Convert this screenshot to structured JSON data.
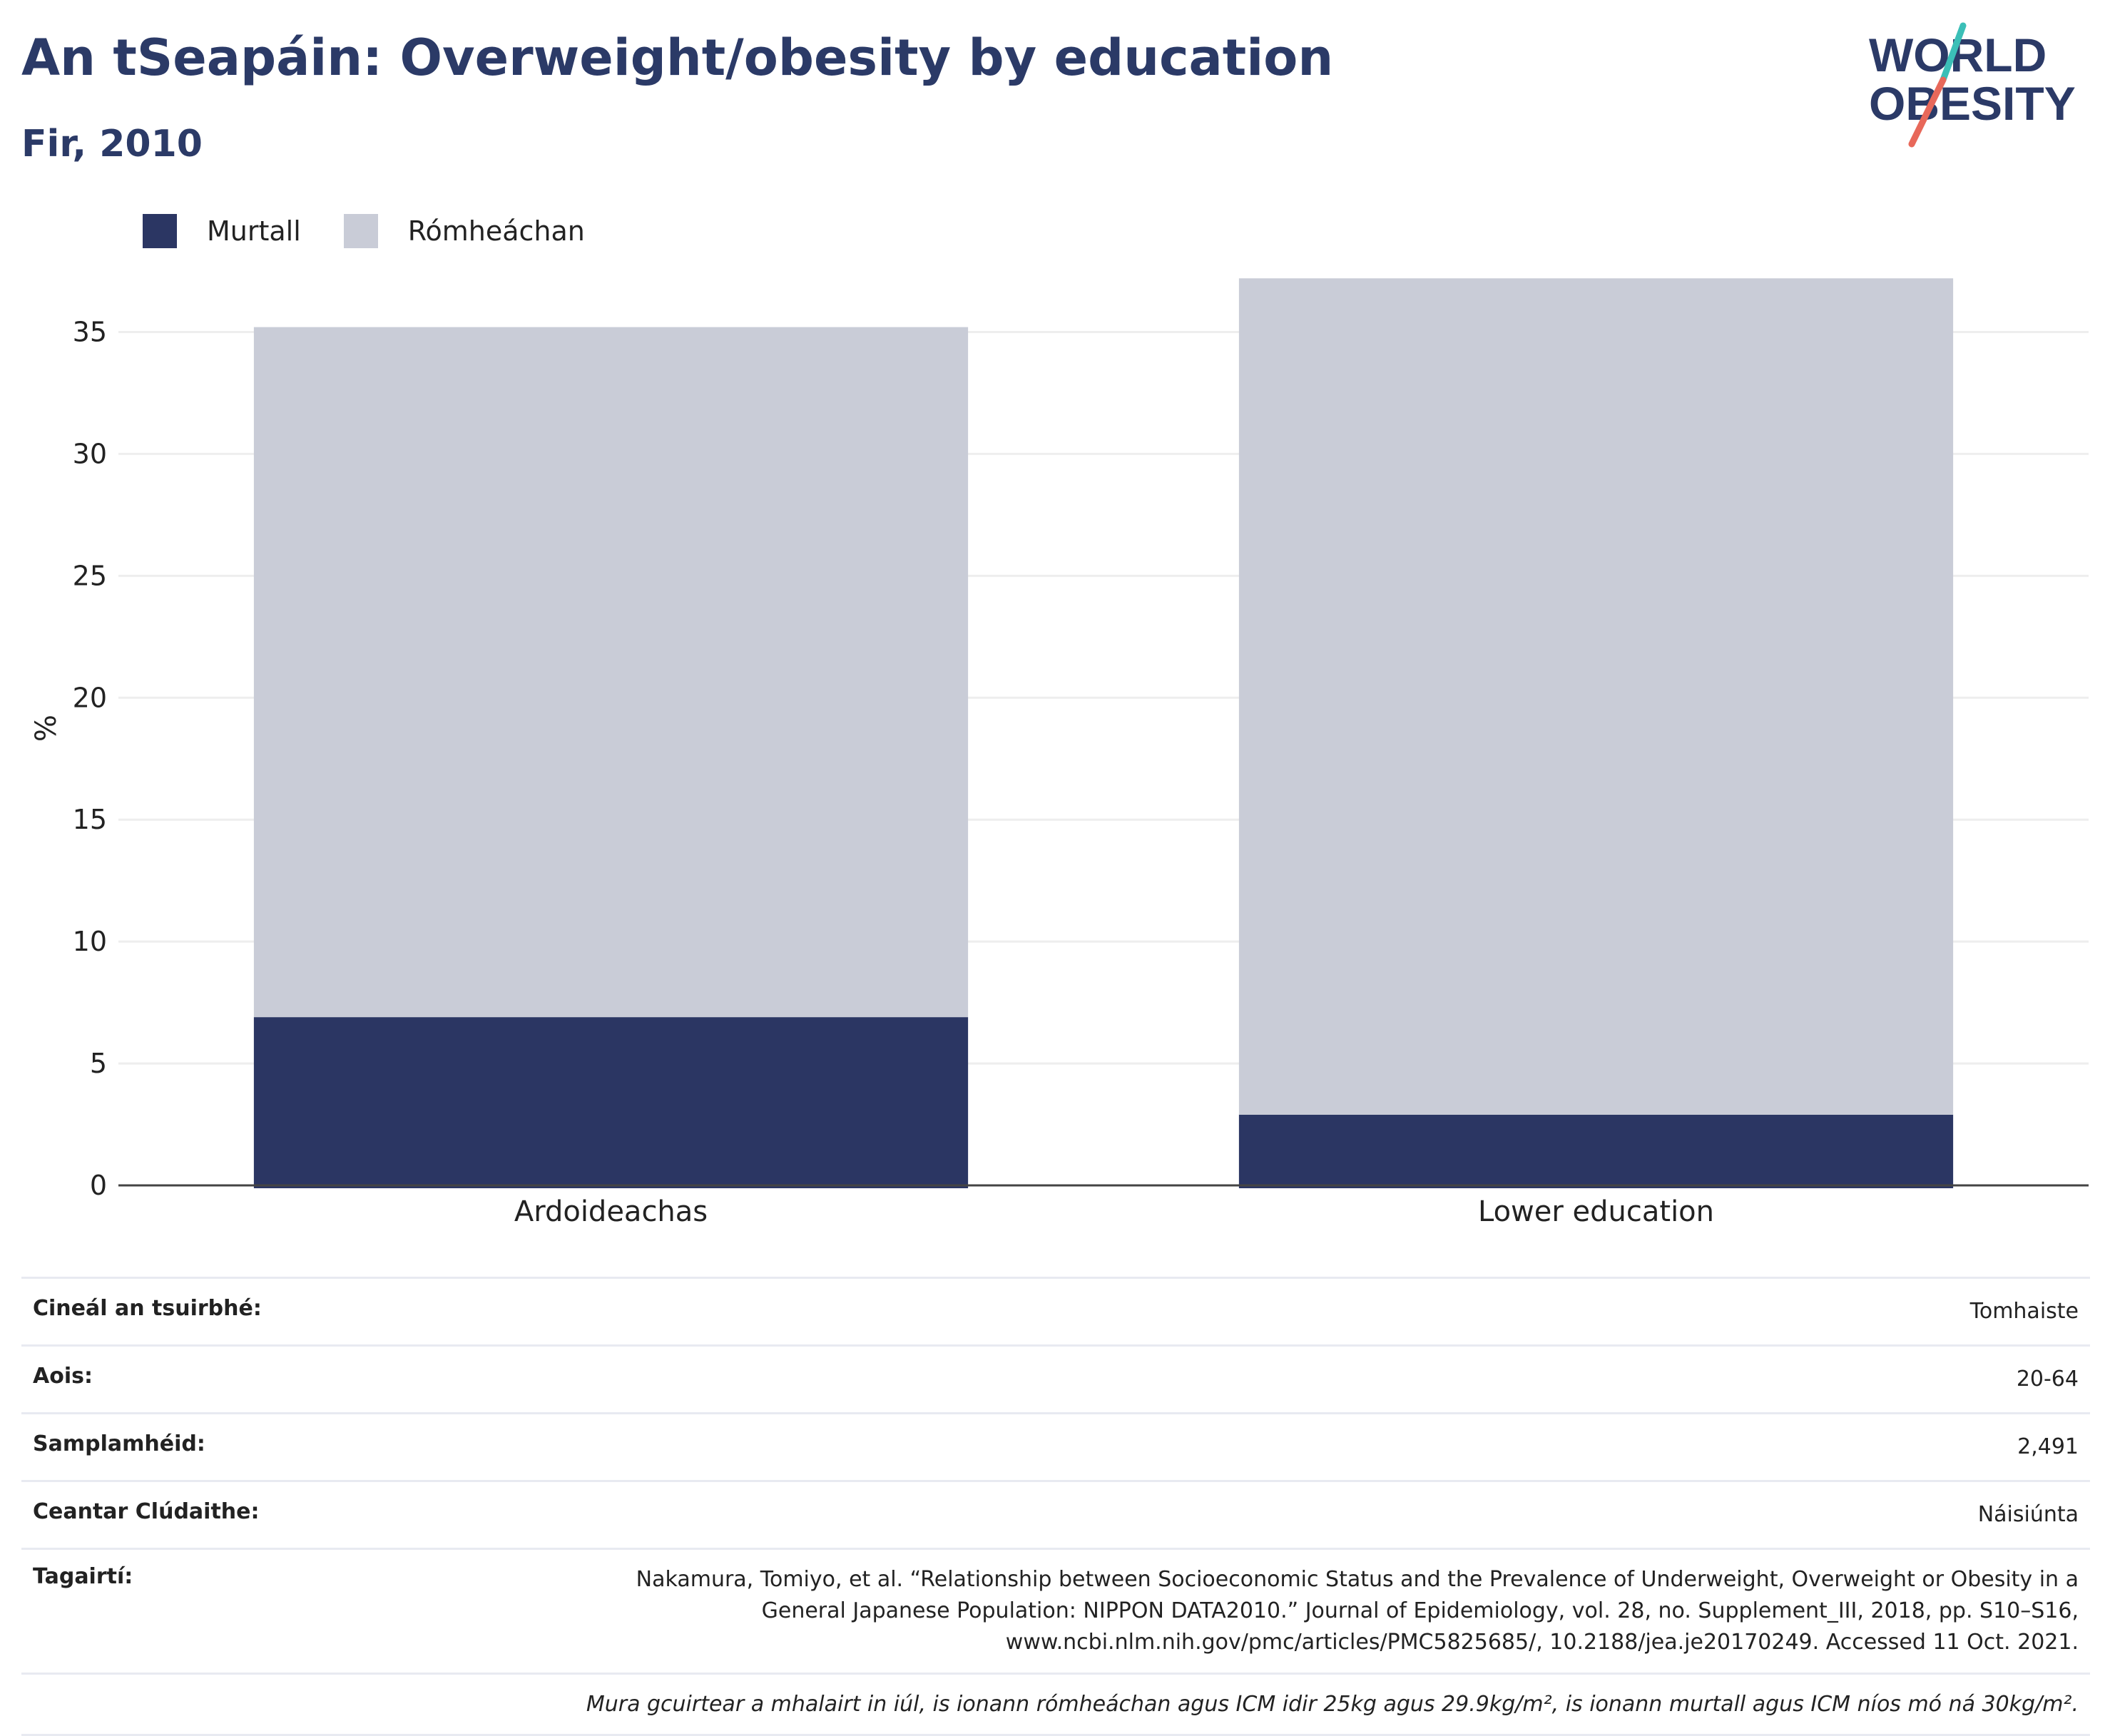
{
  "header": {
    "title": "An tSeapáin: Overweight/obesity by education",
    "subtitle": "Fir, 2010"
  },
  "logo": {
    "line1": "WORLD",
    "line2": "OBESITY"
  },
  "colors": {
    "obese": "#2b3663",
    "overweight": "#c9ccd7",
    "title": "#2b3a67",
    "grid": "#eeeeee",
    "axis": "#444444"
  },
  "chart_data": {
    "type": "bar",
    "stacked": true,
    "categories": [
      "Ardoideachas",
      "Lower education"
    ],
    "series": [
      {
        "name": "Murtall",
        "values": [
          6.9,
          2.9
        ]
      },
      {
        "name": "Rómheáchan",
        "values": [
          28.3,
          34.3
        ]
      }
    ],
    "ylabel": "%",
    "ylim": [
      0,
      37.5
    ],
    "yticks": [
      0,
      5,
      10,
      15,
      20,
      25,
      30,
      35
    ],
    "grid": true,
    "legend_position": "top-left"
  },
  "metadata": {
    "rows": [
      {
        "label": "Cineál an tsuirbhé:",
        "value": "Tomhaiste"
      },
      {
        "label": "Aois:",
        "value": "20-64"
      },
      {
        "label": "Samplamhéid:",
        "value": "2,491"
      },
      {
        "label": "Ceantar Clúdaithe:",
        "value": "Náisiúnta"
      }
    ],
    "reference_label": "Tagairtí:",
    "reference_lines": [
      "Nakamura, Tomiyo, et al. “Relationship between Socioeconomic Status and the Prevalence of Underweight, Overweight or Obesity in a",
      "General Japanese Population: NIPPON DATA2010.” Journal of Epidemiology, vol. 28, no. Supplement_III, 2018, pp. S10–S16,",
      "www.ncbi.nlm.nih.gov/pmc/articles/PMC5825685/, 10.2188/jea.je20170249. Accessed 11 Oct. 2021."
    ],
    "note": "Mura gcuirtear a mhalairt in iúl, is ionann rómheáchan agus ICM idir 25kg agus 29.9kg/m², is ionann murtall agus ICM níos mó ná 30kg/m²."
  }
}
